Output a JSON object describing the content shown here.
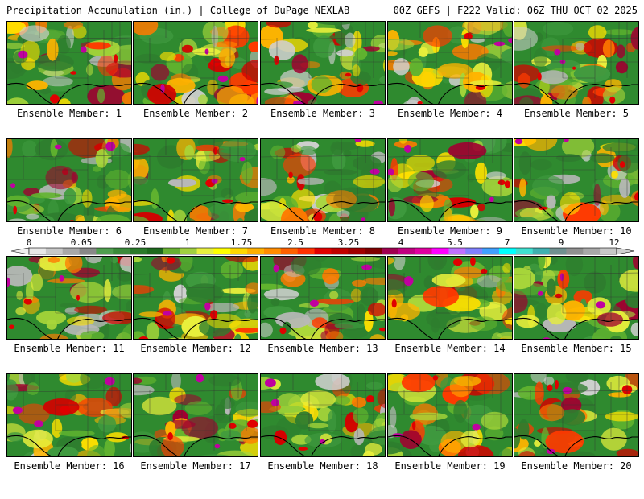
{
  "header": {
    "title_left": "Precipitation Accumulation (in.) | College of DuPage NEXLAB",
    "title_right": "00Z GEFS | F222 Valid: 06Z THU OCT 02 2025"
  },
  "panel_prefix": "Ensemble Member:",
  "panels": [
    {
      "member": "1"
    },
    {
      "member": "2"
    },
    {
      "member": "3"
    },
    {
      "member": "4"
    },
    {
      "member": "5"
    },
    {
      "member": "6"
    },
    {
      "member": "7"
    },
    {
      "member": "8"
    },
    {
      "member": "9"
    },
    {
      "member": "10"
    },
    {
      "member": "11"
    },
    {
      "member": "12"
    },
    {
      "member": "13"
    },
    {
      "member": "14"
    },
    {
      "member": "15"
    },
    {
      "member": "16"
    },
    {
      "member": "17"
    },
    {
      "member": "18"
    },
    {
      "member": "19"
    },
    {
      "member": "20"
    }
  ],
  "colorbar": {
    "labels": [
      "0",
      "0.05",
      "0.25",
      "1",
      "1.75",
      "2.5",
      "3.25",
      "4",
      "5.5",
      "7",
      "9",
      "12"
    ],
    "colors": [
      "#e8e8e8",
      "#c8c8c8",
      "#a8a8a8",
      "#888888",
      "#4e9e4e",
      "#3a8a3a",
      "#2a7a2a",
      "#1e6a1e",
      "#66b032",
      "#a0d040",
      "#e8f040",
      "#ffff00",
      "#ffd700",
      "#ffb000",
      "#ff8c00",
      "#ff6000",
      "#ff3000",
      "#e00000",
      "#c00000",
      "#a00000",
      "#800000",
      "#a00050",
      "#c00080",
      "#e000a0",
      "#ff00ff",
      "#c070ff",
      "#8080ff",
      "#40a0ff",
      "#00ffff",
      "#40e0d0",
      "#40b0b0",
      "#709090",
      "#909090",
      "#a8a8a8",
      "#c8c8c8"
    ]
  }
}
